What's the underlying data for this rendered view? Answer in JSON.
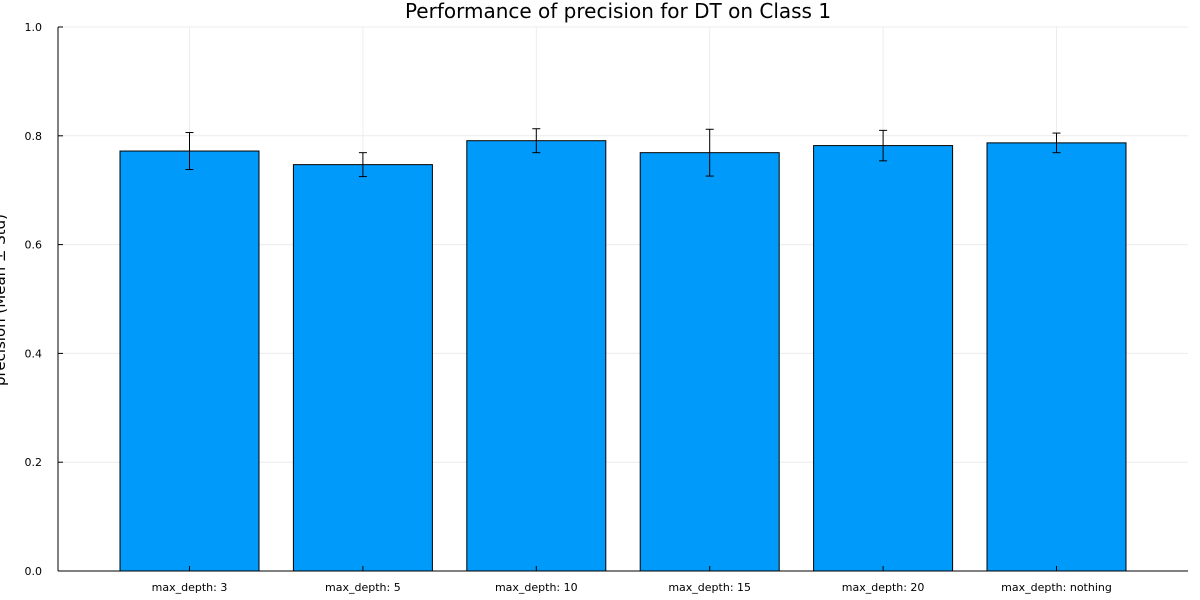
{
  "chart_data": {
    "type": "bar",
    "title": "Performance of precision for DT on Class 1",
    "xlabel": "",
    "ylabel": "precision (Mean ± Std)",
    "categories": [
      "max_depth: 3",
      "max_depth: 5",
      "max_depth: 10",
      "max_depth: 15",
      "max_depth: 20",
      "max_depth: nothing"
    ],
    "series": [
      {
        "values": [
          0.772,
          0.747,
          0.791,
          0.769,
          0.782,
          0.787
        ],
        "std": [
          0.034,
          0.022,
          0.022,
          0.043,
          0.028,
          0.018
        ],
        "color": "#009AFA"
      }
    ],
    "ylim": [
      0,
      1
    ],
    "yticks": [
      0.0,
      0.2,
      0.4,
      0.6,
      0.8,
      1.0
    ],
    "ytick_labels": [
      "0.0",
      "0.2",
      "0.4",
      "0.6",
      "0.8",
      "1.0"
    ],
    "grid": true,
    "legend": "none"
  }
}
